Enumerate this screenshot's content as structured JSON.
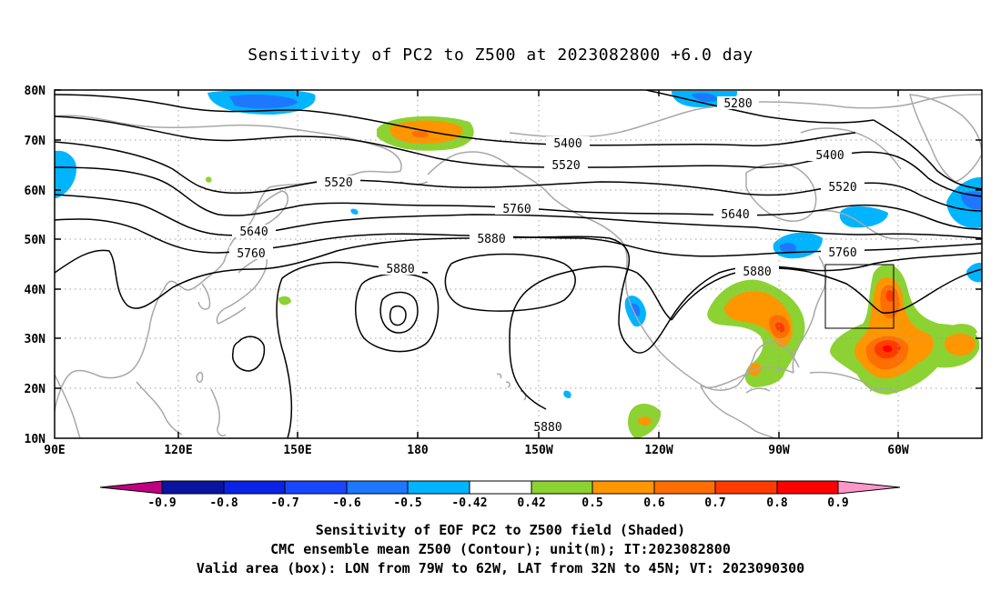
{
  "title": "Sensitivity of PC2 to Z500 at 2023082800 +6.0 day",
  "map": {
    "lat_labels": [
      "80N",
      "70N",
      "60N",
      "50N",
      "40N",
      "30N",
      "20N",
      "10N"
    ],
    "lon_labels": [
      "90E",
      "120E",
      "150E",
      "180",
      "150W",
      "120W",
      "90W",
      "60W"
    ],
    "contour_labels": [
      "5280",
      "5400",
      "5400",
      "5520",
      "5520",
      "5520",
      "5640",
      "5640",
      "5760",
      "5760",
      "5760",
      "5880",
      "5880",
      "5880",
      "5880"
    ],
    "valid_box": {
      "lon_from": "79W",
      "lon_to": "62W",
      "lat_from": "32N",
      "lat_to": "45N"
    }
  },
  "colorbar": {
    "labels": [
      "-0.9",
      "-0.8",
      "-0.7",
      "-0.6",
      "-0.5",
      "-0.42",
      "0.42",
      "0.5",
      "0.6",
      "0.7",
      "0.8",
      "0.9"
    ],
    "colors": [
      "#c0007f",
      "#0a14a0",
      "#0a23e6",
      "#1946ff",
      "#1e78ff",
      "#00b4ff",
      "#ffffff",
      "#8cd232",
      "#ff9600",
      "#ff6e00",
      "#ff3c00",
      "#ff0000",
      "#ff96c8"
    ]
  },
  "caption": {
    "line1": "Sensitivity of EOF PC2 to Z500 field (Shaded)",
    "line2": "CMC ensemble mean Z500 (Contour); unit(m); IT:2023082800",
    "line3": "Valid area (box): LON from 79W to 62W, LAT from 32N to 45N; VT: 2023090300"
  }
}
